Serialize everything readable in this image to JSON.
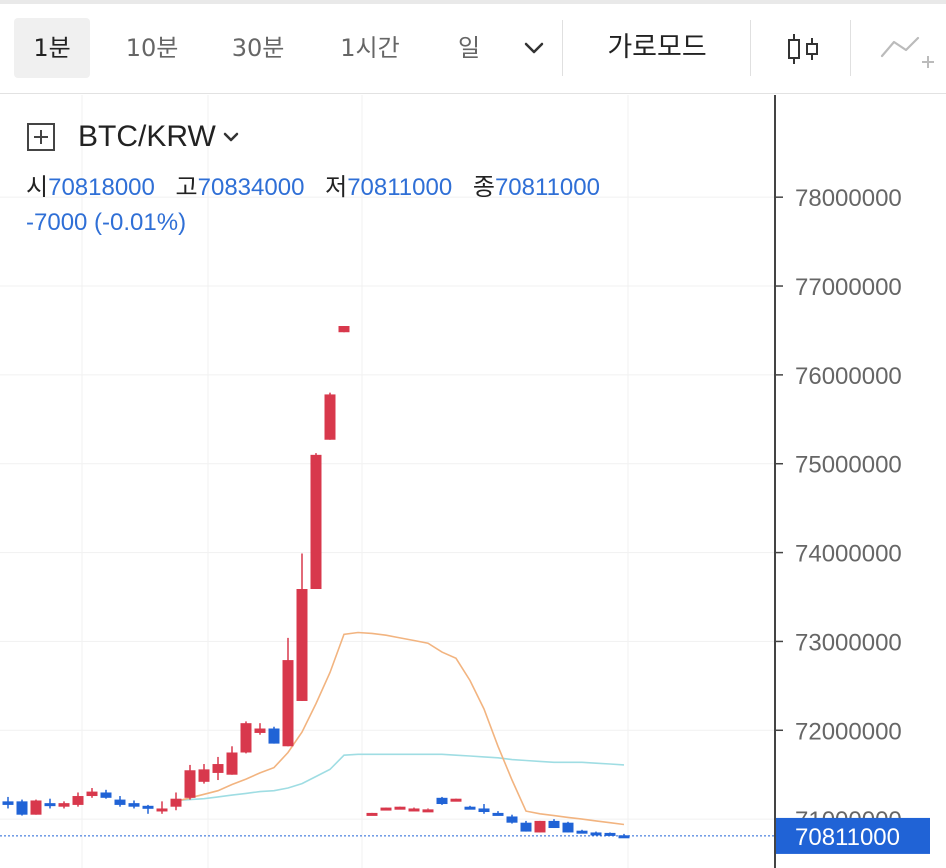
{
  "toolbar": {
    "intervals": [
      "1분",
      "10분",
      "30분",
      "1시간",
      "일"
    ],
    "active_interval": "1분",
    "mode_label": "가로모드",
    "icons": [
      "chevron-down-icon",
      "candlestick-icon",
      "indicator-icon"
    ]
  },
  "legend": {
    "symbol": "BTC/KRW",
    "open_label": "시",
    "open": "70818000",
    "high_label": "고",
    "high": "70834000",
    "low_label": "저",
    "low": "70811000",
    "close_label": "종",
    "close": "70811000",
    "change": "-7000 (-0.01%)"
  },
  "colors": {
    "up": "#d8384c",
    "down": "#2063d6",
    "ma_long": "#f2b480",
    "ma_short": "#9fdde3",
    "last_price_bg": "#2063d6"
  },
  "chart_data": {
    "type": "candlestick",
    "title": "BTC/KRW",
    "x_interval": "1분",
    "ylim": [
      70450000,
      79150000
    ],
    "y_ticks": [
      71000000,
      72000000,
      73000000,
      74000000,
      75000000,
      76000000,
      77000000,
      78000000
    ],
    "y_tick_labels": [
      "71000000",
      "72000000",
      "73000000",
      "74000000",
      "75000000",
      "76000000",
      "77000000",
      "78000000"
    ],
    "last_price": 70811000,
    "last_price_label": "70811000",
    "candles": [
      {
        "o": 71200000,
        "h": 71250000,
        "l": 71120000,
        "c": 71160000
      },
      {
        "o": 71200000,
        "h": 71220000,
        "l": 71040000,
        "c": 71050000
      },
      {
        "o": 71050000,
        "h": 71220000,
        "l": 71050000,
        "c": 71210000
      },
      {
        "o": 71180000,
        "h": 71230000,
        "l": 71120000,
        "c": 71170000
      },
      {
        "o": 71140000,
        "h": 71200000,
        "l": 71120000,
        "c": 71180000
      },
      {
        "o": 71160000,
        "h": 71300000,
        "l": 71140000,
        "c": 71260000
      },
      {
        "o": 71260000,
        "h": 71350000,
        "l": 71240000,
        "c": 71310000
      },
      {
        "o": 71300000,
        "h": 71330000,
        "l": 71230000,
        "c": 71240000
      },
      {
        "o": 71220000,
        "h": 71260000,
        "l": 71140000,
        "c": 71160000
      },
      {
        "o": 71180000,
        "h": 71210000,
        "l": 71120000,
        "c": 71140000
      },
      {
        "o": 71150000,
        "h": 71160000,
        "l": 71060000,
        "c": 71140000
      },
      {
        "o": 71110000,
        "h": 71200000,
        "l": 71060000,
        "c": 71120000
      },
      {
        "o": 71140000,
        "h": 71300000,
        "l": 71100000,
        "c": 71230000
      },
      {
        "o": 71240000,
        "h": 71610000,
        "l": 71220000,
        "c": 71550000
      },
      {
        "o": 71420000,
        "h": 71620000,
        "l": 71400000,
        "c": 71560000
      },
      {
        "o": 71520000,
        "h": 71700000,
        "l": 71440000,
        "c": 71620000
      },
      {
        "o": 71500000,
        "h": 71820000,
        "l": 71500000,
        "c": 71750000
      },
      {
        "o": 71750000,
        "h": 72100000,
        "l": 71740000,
        "c": 72080000
      },
      {
        "o": 71970000,
        "h": 72080000,
        "l": 71950000,
        "c": 72020000
      },
      {
        "o": 72020000,
        "h": 72040000,
        "l": 71850000,
        "c": 71850000
      },
      {
        "o": 71820000,
        "h": 73040000,
        "l": 71820000,
        "c": 72790000
      },
      {
        "o": 72330000,
        "h": 73990000,
        "l": 72330000,
        "c": 73590000
      },
      {
        "o": 73590000,
        "h": 75120000,
        "l": 73590000,
        "c": 75100000
      },
      {
        "o": 75270000,
        "h": 75800000,
        "l": 75270000,
        "c": 75780000
      },
      {
        "o": 76480000,
        "h": 76550000,
        "l": 76480000,
        "c": 76550000
      },
      null,
      {
        "o": 71050000,
        "h": 71070000,
        "l": 71050000,
        "c": 71070000
      },
      {
        "o": 71100000,
        "h": 71130000,
        "l": 71100000,
        "c": 71130000
      },
      {
        "o": 71130000,
        "h": 71140000,
        "l": 71130000,
        "c": 71140000
      },
      {
        "o": 71120000,
        "h": 71130000,
        "l": 71120000,
        "c": 71120000
      },
      {
        "o": 71110000,
        "h": 71120000,
        "l": 71110000,
        "c": 71110000
      },
      {
        "o": 71240000,
        "h": 71250000,
        "l": 71160000,
        "c": 71170000
      },
      {
        "o": 71210000,
        "h": 71230000,
        "l": 71210000,
        "c": 71230000
      },
      {
        "o": 71140000,
        "h": 71150000,
        "l": 71130000,
        "c": 71130000
      },
      {
        "o": 71120000,
        "h": 71170000,
        "l": 71060000,
        "c": 71080000
      },
      {
        "o": 71070000,
        "h": 71090000,
        "l": 71040000,
        "c": 71050000
      },
      {
        "o": 71030000,
        "h": 71050000,
        "l": 70950000,
        "c": 70960000
      },
      {
        "o": 70960000,
        "h": 70980000,
        "l": 70860000,
        "c": 70860000
      },
      {
        "o": 70850000,
        "h": 70980000,
        "l": 70850000,
        "c": 70980000
      },
      {
        "o": 70980000,
        "h": 71000000,
        "l": 70900000,
        "c": 70900000
      },
      {
        "o": 70960000,
        "h": 70970000,
        "l": 70850000,
        "c": 70850000
      },
      {
        "o": 70870000,
        "h": 70880000,
        "l": 70840000,
        "c": 70850000
      },
      {
        "o": 70850000,
        "h": 70860000,
        "l": 70840000,
        "c": 70845000
      },
      {
        "o": 70845000,
        "h": 70850000,
        "l": 70830000,
        "c": 70835000
      },
      {
        "o": 70818000,
        "h": 70834000,
        "l": 70811000,
        "c": 70811000
      }
    ],
    "ma_long": [
      null,
      null,
      null,
      null,
      null,
      null,
      null,
      null,
      null,
      null,
      null,
      null,
      71200000,
      71240000,
      71280000,
      71320000,
      71390000,
      71450000,
      71520000,
      71580000,
      71750000,
      71980000,
      72300000,
      72650000,
      73080000,
      73100000,
      73090000,
      73070000,
      73040000,
      73010000,
      72980000,
      72880000,
      72810000,
      72560000,
      72240000,
      71820000,
      71440000,
      71090000,
      71060000,
      71040000,
      71020000,
      71000000,
      70980000,
      70960000,
      70940000
    ],
    "ma_short": [
      null,
      null,
      null,
      null,
      null,
      null,
      null,
      null,
      null,
      null,
      null,
      null,
      71210000,
      71220000,
      71230000,
      71250000,
      71270000,
      71290000,
      71310000,
      71320000,
      71350000,
      71400000,
      71480000,
      71560000,
      71720000,
      71730000,
      71730000,
      71730000,
      71730000,
      71730000,
      71730000,
      71730000,
      71720000,
      71710000,
      71700000,
      71690000,
      71670000,
      71660000,
      71650000,
      71640000,
      71640000,
      71640000,
      71630000,
      71620000,
      71610000
    ]
  }
}
